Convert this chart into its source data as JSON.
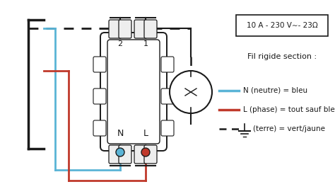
{
  "bg_color": "#ffffff",
  "blue_color": "#5ab4d6",
  "red_color": "#c0392b",
  "black_color": "#1a1a1a",
  "spec_box_text": "10 A - 230 V∼- 23Ω",
  "legend_N": "N (neutre) = bleu",
  "legend_L": "L (phase) = tout sauf bleu é",
  "legend_T": "(terre) = vert/jaune",
  "label_fil": "Fil rigide section :"
}
